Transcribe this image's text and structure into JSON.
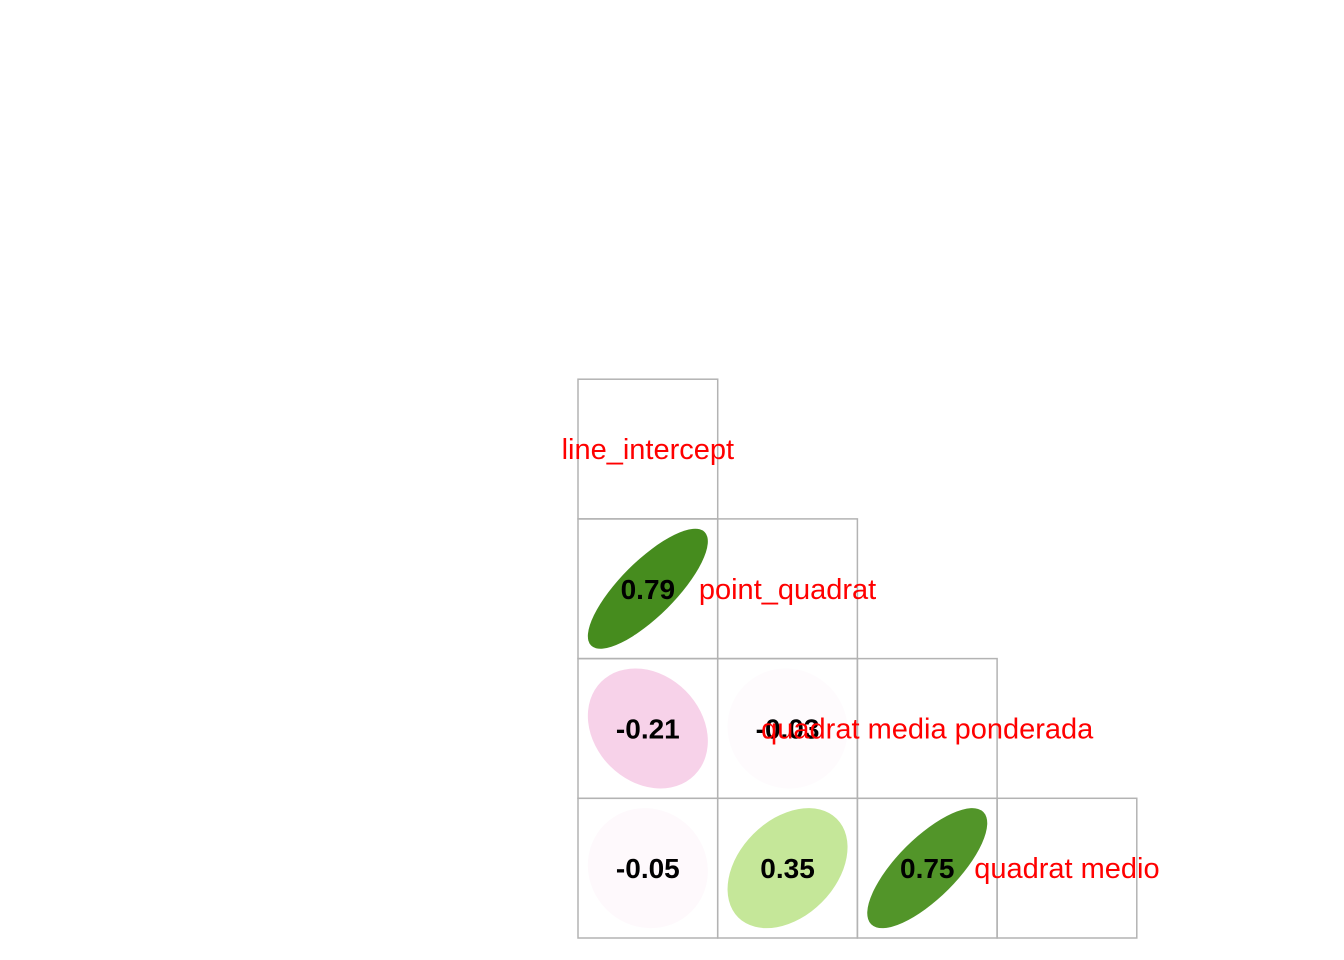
{
  "chart_data": {
    "type": "heatmap",
    "subtype": "correlation-matrix-lower-ellipse",
    "variables": [
      "line_intercept",
      "point_quadrat",
      "quadrat media ponderada",
      "quadrat medio"
    ],
    "correlations": [
      {
        "row": "point_quadrat",
        "col": "line_intercept",
        "value": 0.79,
        "label": "0.79"
      },
      {
        "row": "quadrat media ponderada",
        "col": "line_intercept",
        "value": -0.21,
        "label": "-0.21"
      },
      {
        "row": "quadrat media ponderada",
        "col": "point_quadrat",
        "value": -0.03,
        "label": "-0.03"
      },
      {
        "row": "quadrat medio",
        "col": "line_intercept",
        "value": -0.05,
        "label": "-0.05"
      },
      {
        "row": "quadrat medio",
        "col": "point_quadrat",
        "value": 0.35,
        "label": "0.35"
      },
      {
        "row": "quadrat medio",
        "col": "quadrat media ponderada",
        "value": 0.75,
        "label": "0.75"
      }
    ],
    "diagonal_labels": [
      "line_intercept",
      "point_quadrat",
      "quadrat media ponderada",
      "quadrat medio"
    ],
    "colors": {
      "label_text": "#ff0000",
      "coef_text": "#000000",
      "grid": "#b3b3b3",
      "positive_scale": [
        "#ffffff",
        "#bde48a",
        "#438a1b"
      ],
      "negative_scale": [
        "#ffffff",
        "#fcf2f8",
        "#f7d2e9"
      ]
    },
    "value_range": [
      -1,
      1
    ]
  }
}
